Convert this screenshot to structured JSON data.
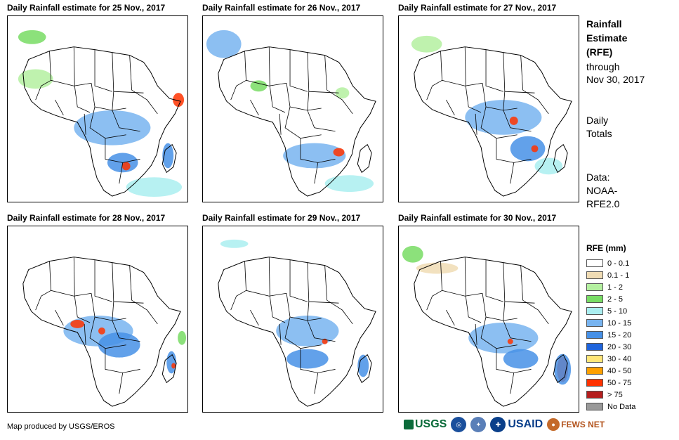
{
  "panels": [
    {
      "title": "Daily Rainfall estimate for 25 Nov., 2017"
    },
    {
      "title": "Daily Rainfall estimate for 26 Nov., 2017"
    },
    {
      "title": "Daily Rainfall estimate for 27 Nov., 2017"
    },
    {
      "title": "Daily Rainfall estimate for 28 Nov., 2017"
    },
    {
      "title": "Daily Rainfall estimate for 29 Nov., 2017"
    },
    {
      "title": "Daily Rainfall estimate for 30 Nov., 2017"
    }
  ],
  "side": {
    "title_line1": "Rainfall",
    "title_line2": "Estimate",
    "title_line3": "(RFE)",
    "through_label": "through",
    "through_date": "Nov 30, 2017",
    "totals_line1": "Daily",
    "totals_line2": "Totals",
    "data_line1": "Data:",
    "data_line2": "NOAA-",
    "data_line3": "RFE2.0"
  },
  "legend": {
    "title": "RFE (mm)",
    "items": [
      {
        "label": "0 - 0.1",
        "color": "#ffffff"
      },
      {
        "label": "0.1 - 1",
        "color": "#f0dcb4"
      },
      {
        "label": "1 - 2",
        "color": "#b4f0a0"
      },
      {
        "label": "2 - 5",
        "color": "#78dc64"
      },
      {
        "label": "5 - 10",
        "color": "#aaeef0"
      },
      {
        "label": "10 - 15",
        "color": "#78b4f0"
      },
      {
        "label": "15 - 20",
        "color": "#4690e6"
      },
      {
        "label": "20 - 30",
        "color": "#1e64dc"
      },
      {
        "label": "30 - 40",
        "color": "#ffe678"
      },
      {
        "label": "40 - 50",
        "color": "#ffa000"
      },
      {
        "label": "50 - 75",
        "color": "#ff3200"
      },
      {
        "label": "> 75",
        "color": "#b41e1e"
      },
      {
        "label": "No Data",
        "color": "#999999"
      }
    ]
  },
  "credit": "Map produced by USGS/EROS",
  "logos": {
    "usgs": "USGS",
    "usaid": "USAID",
    "fews": "FEWS NET"
  }
}
